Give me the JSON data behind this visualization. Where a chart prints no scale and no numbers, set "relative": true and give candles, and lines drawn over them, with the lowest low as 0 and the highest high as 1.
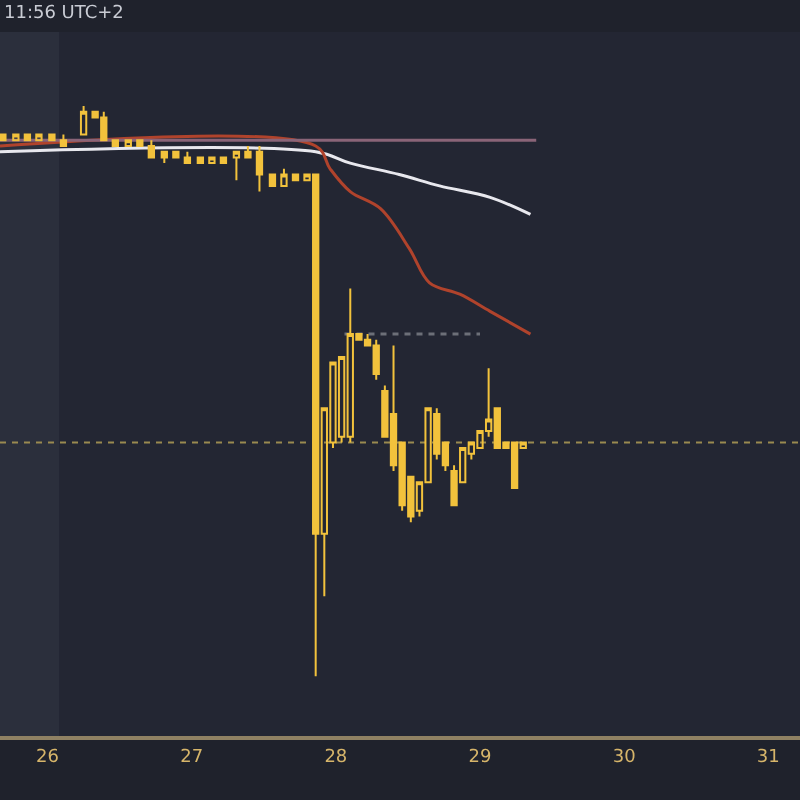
{
  "chart_data": {
    "type": "candlestick",
    "relative": true,
    "annotations": [
      "11:56 UTC+2"
    ],
    "x": [
      25.69,
      25.78,
      25.86,
      25.94,
      26.03,
      26.11,
      26.25,
      26.33,
      26.39,
      26.47,
      26.56,
      26.64,
      26.72,
      26.81,
      26.89,
      26.97,
      27.06,
      27.14,
      27.22,
      27.31,
      27.39,
      27.47,
      27.56,
      27.64,
      27.72,
      27.8,
      27.86,
      27.92,
      27.98,
      28.04,
      28.1,
      28.16,
      28.22,
      28.28,
      28.34,
      28.4,
      28.46,
      28.52,
      28.58,
      28.64,
      28.7,
      28.76,
      28.82,
      28.88,
      28.94,
      29.0,
      29.06,
      29.12,
      29.18,
      29.24,
      29.3
    ],
    "ohlc": [
      [
        0.95,
        0.95,
        0.94,
        0.94
      ],
      [
        0.94,
        0.95,
        0.94,
        0.95
      ],
      [
        0.95,
        0.95,
        0.94,
        0.94
      ],
      [
        0.94,
        0.95,
        0.94,
        0.95
      ],
      [
        0.95,
        0.95,
        0.94,
        0.94
      ],
      [
        0.94,
        0.95,
        0.93,
        0.93
      ],
      [
        0.95,
        1.0,
        0.95,
        0.99
      ],
      [
        0.99,
        0.99,
        0.98,
        0.98
      ],
      [
        0.98,
        0.99,
        0.94,
        0.94
      ],
      [
        0.94,
        0.94,
        0.93,
        0.93
      ],
      [
        0.93,
        0.94,
        0.93,
        0.94
      ],
      [
        0.94,
        0.94,
        0.93,
        0.93
      ],
      [
        0.93,
        0.94,
        0.91,
        0.91
      ],
      [
        0.92,
        0.92,
        0.9,
        0.91
      ],
      [
        0.92,
        0.92,
        0.91,
        0.91
      ],
      [
        0.91,
        0.92,
        0.9,
        0.9
      ],
      [
        0.91,
        0.91,
        0.9,
        0.9
      ],
      [
        0.9,
        0.91,
        0.9,
        0.91
      ],
      [
        0.91,
        0.91,
        0.9,
        0.9
      ],
      [
        0.91,
        0.92,
        0.87,
        0.92
      ],
      [
        0.92,
        0.93,
        0.91,
        0.91
      ],
      [
        0.92,
        0.93,
        0.85,
        0.88
      ],
      [
        0.88,
        0.88,
        0.86,
        0.86
      ],
      [
        0.86,
        0.89,
        0.86,
        0.88
      ],
      [
        0.88,
        0.88,
        0.87,
        0.87
      ],
      [
        0.87,
        0.88,
        0.87,
        0.88
      ],
      [
        0.88,
        0.88,
        0.0,
        0.25
      ],
      [
        0.25,
        0.47,
        0.14,
        0.47
      ],
      [
        0.41,
        0.55,
        0.4,
        0.55
      ],
      [
        0.42,
        0.56,
        0.41,
        0.56
      ],
      [
        0.42,
        0.68,
        0.41,
        0.6
      ],
      [
        0.6,
        0.6,
        0.59,
        0.59
      ],
      [
        0.59,
        0.6,
        0.58,
        0.58
      ],
      [
        0.58,
        0.59,
        0.52,
        0.53
      ],
      [
        0.5,
        0.51,
        0.42,
        0.42
      ],
      [
        0.46,
        0.58,
        0.36,
        0.37
      ],
      [
        0.41,
        0.41,
        0.29,
        0.3
      ],
      [
        0.35,
        0.35,
        0.27,
        0.28
      ],
      [
        0.29,
        0.34,
        0.28,
        0.34
      ],
      [
        0.34,
        0.47,
        0.34,
        0.47
      ],
      [
        0.46,
        0.47,
        0.38,
        0.39
      ],
      [
        0.41,
        0.41,
        0.36,
        0.37
      ],
      [
        0.36,
        0.37,
        0.3,
        0.3
      ],
      [
        0.34,
        0.4,
        0.34,
        0.4
      ],
      [
        0.39,
        0.41,
        0.38,
        0.41
      ],
      [
        0.4,
        0.43,
        0.4,
        0.43
      ],
      [
        0.43,
        0.54,
        0.42,
        0.45
      ],
      [
        0.47,
        0.47,
        0.4,
        0.4
      ],
      [
        0.41,
        0.41,
        0.4,
        0.4
      ],
      [
        0.41,
        0.41,
        0.33,
        0.33
      ],
      [
        0.4,
        0.41,
        0.4,
        0.41
      ]
    ],
    "color": "#f2c23c",
    "series": [
      {
        "type": "line",
        "color": "#e8e8ee",
        "x": [
          25.67,
          27.86,
          28.1,
          28.44,
          28.72,
          29.07,
          29.35
        ],
        "values": [
          0.92,
          0.92,
          0.9,
          0.88,
          0.86,
          0.84,
          0.81
        ]
      },
      {
        "type": "line",
        "color": "#b0432c",
        "x": [
          25.67,
          27.86,
          27.96,
          28.1,
          28.31,
          28.51,
          28.65,
          28.86,
          29.07,
          29.35
        ],
        "values": [
          0.93,
          0.93,
          0.89,
          0.85,
          0.82,
          0.75,
          0.69,
          0.67,
          0.64,
          0.6
        ]
      },
      {
        "type": "line",
        "color": "#8a6478",
        "x": [
          25.67,
          29.39
        ],
        "values": [
          0.94,
          0.94
        ]
      },
      {
        "type": "line",
        "color": "#6c6f78",
        "line_style": "dotted",
        "x": [
          28.06,
          29.0
        ],
        "values": [
          0.6,
          0.6
        ]
      }
    ],
    "ref_lines": [
      {
        "axis": "y",
        "value": 0.41,
        "color": "#9a8a50",
        "line_style": "dotted"
      }
    ],
    "bands": [
      {
        "axis": "x",
        "from": 25.67,
        "to": 26.08,
        "color": "#2b2f3c"
      }
    ],
    "xlim": [
      25.67,
      31.22
    ],
    "xticks": [
      26,
      27,
      28,
      29,
      30,
      31
    ]
  }
}
